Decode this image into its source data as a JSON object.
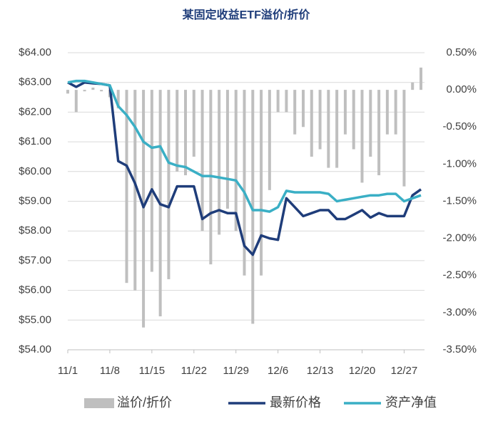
{
  "chart_data": {
    "type": "combo",
    "title": "某固定收益ETF溢价/折价",
    "categories": [
      "11/1",
      null,
      null,
      null,
      null,
      "11/8",
      null,
      null,
      null,
      null,
      "11/15",
      null,
      null,
      null,
      null,
      "11/22",
      null,
      null,
      null,
      null,
      "11/29",
      null,
      null,
      null,
      null,
      "12/6",
      null,
      null,
      null,
      null,
      "12/13",
      null,
      null,
      null,
      null,
      "12/20",
      null,
      null,
      null,
      null,
      "12/27",
      null,
      null
    ],
    "ylim": [
      54,
      64
    ],
    "yticks": [
      {
        "value": 54,
        "label": "$54.00"
      },
      {
        "value": 55,
        "label": "$55.00"
      },
      {
        "value": 56,
        "label": "$56.00"
      },
      {
        "value": 57,
        "label": "$57.00"
      },
      {
        "value": 58,
        "label": "$58.00"
      },
      {
        "value": 59,
        "label": "$59.00"
      },
      {
        "value": 60,
        "label": "$60.00"
      },
      {
        "value": 61,
        "label": "$61.00"
      },
      {
        "value": 62,
        "label": "$62.00"
      },
      {
        "value": 63,
        "label": "$63.00"
      },
      {
        "value": 64,
        "label": "$64.00"
      }
    ],
    "y2lim": [
      -3.5,
      0.5
    ],
    "y2ticks": [
      {
        "value": -3.5,
        "label": "-3.50%"
      },
      {
        "value": -3,
        "label": "-3.00%"
      },
      {
        "value": -2.5,
        "label": "-2.50%"
      },
      {
        "value": -2,
        "label": "-2.00%"
      },
      {
        "value": -1.5,
        "label": "-1.50%"
      },
      {
        "value": -1,
        "label": "-1.00%"
      },
      {
        "value": -0.5,
        "label": "-0.50%"
      },
      {
        "value": 0,
        "label": "0.00%"
      },
      {
        "value": 0.5,
        "label": "0.50%"
      }
    ],
    "grid": true,
    "legend": "bottom",
    "series": [
      {
        "name": "溢价/折价",
        "type": "bar",
        "axis": "y2",
        "color": "#bfbfbf",
        "values": [
          -0.05,
          -0.3,
          -0.02,
          0.03,
          -0.02,
          -0.1,
          -0.25,
          -2.6,
          -2.7,
          -3.2,
          -2.45,
          -3.05,
          -2.55,
          -1.1,
          -1.15,
          -0.9,
          -1.9,
          -2.35,
          -1.95,
          -1.6,
          -1.9,
          -2.5,
          -3.15,
          -2.5,
          -1.35,
          -0.3,
          -0.3,
          -0.6,
          -0.5,
          -0.9,
          -0.8,
          -1.05,
          -1.05,
          -0.6,
          -0.8,
          -1.25,
          -0.9,
          -1.15,
          -0.6,
          -0.6,
          -1.3,
          0.1,
          0.3
        ]
      },
      {
        "name": "最新价格",
        "type": "line",
        "color": "#1f3d7a",
        "values": [
          63.0,
          62.85,
          63.0,
          62.97,
          62.95,
          62.9,
          60.35,
          60.2,
          59.6,
          58.8,
          59.4,
          58.9,
          58.8,
          59.5,
          59.5,
          59.5,
          58.4,
          58.6,
          58.7,
          58.6,
          58.6,
          57.5,
          57.2,
          57.85,
          57.75,
          57.7,
          59.1,
          58.8,
          58.5,
          58.6,
          58.7,
          58.7,
          58.4,
          58.4,
          58.55,
          58.7,
          58.45,
          58.6,
          58.5,
          58.5,
          58.5,
          59.2,
          59.4
        ]
      },
      {
        "name": "资产净值",
        "type": "line",
        "color": "#3aafc5",
        "values": [
          63.0,
          63.05,
          63.05,
          63.0,
          62.95,
          62.9,
          62.2,
          61.9,
          61.5,
          61.0,
          60.8,
          60.85,
          60.3,
          60.2,
          60.15,
          60.0,
          59.85,
          59.85,
          59.8,
          59.75,
          59.7,
          59.3,
          58.7,
          58.7,
          58.65,
          58.8,
          59.35,
          59.3,
          59.3,
          59.3,
          59.3,
          59.25,
          59.0,
          59.05,
          59.1,
          59.15,
          59.2,
          59.2,
          59.25,
          59.25,
          59.0,
          59.1,
          59.2
        ]
      }
    ]
  }
}
